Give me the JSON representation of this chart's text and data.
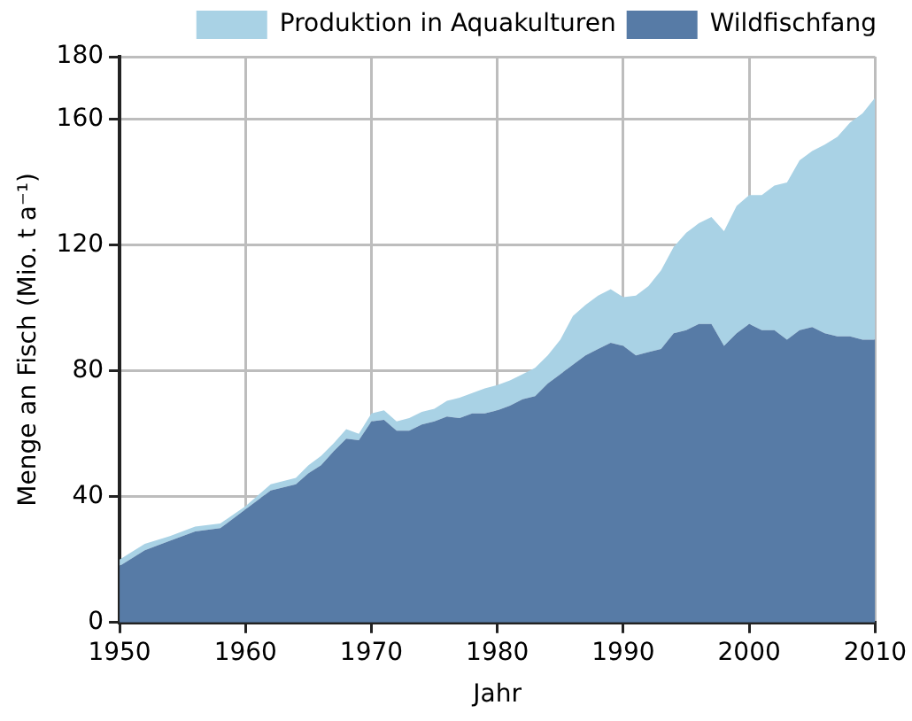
{
  "chart_data": {
    "type": "area",
    "stacked": true,
    "xlabel": "Jahr",
    "ylabel": "Menge an Fisch (Mio. t a⁻¹)",
    "x": [
      1950,
      1952,
      1954,
      1956,
      1958,
      1960,
      1962,
      1964,
      1965,
      1966,
      1967,
      1968,
      1969,
      1970,
      1971,
      1972,
      1973,
      1974,
      1975,
      1976,
      1977,
      1978,
      1979,
      1980,
      1981,
      1982,
      1983,
      1984,
      1985,
      1986,
      1987,
      1988,
      1989,
      1990,
      1991,
      1992,
      1993,
      1994,
      1995,
      1996,
      1997,
      1998,
      1999,
      2000,
      2001,
      2002,
      2003,
      2004,
      2005,
      2006,
      2007,
      2008,
      2009,
      2010
    ],
    "series": [
      {
        "name": "Wildfischfang",
        "color": "#577ba6",
        "values": [
          18,
          23,
          26,
          29,
          30,
          36,
          42,
          44,
          47.5,
          50,
          54.5,
          58.5,
          58,
          64,
          64.5,
          61,
          61,
          63,
          64,
          65.5,
          65,
          66.5,
          66.5,
          67.5,
          69,
          71,
          72,
          76,
          79,
          82,
          85,
          87,
          89,
          88,
          85,
          86,
          87,
          92,
          93,
          95,
          95,
          88,
          92,
          95,
          93,
          93,
          90,
          93,
          94,
          92,
          91,
          91,
          90,
          90
        ]
      },
      {
        "name": "Produktion in Aquakulturen",
        "color": "#a9d2e5",
        "values": [
          2,
          2,
          1.5,
          1.5,
          1.5,
          1,
          2,
          2,
          2.5,
          3,
          2.5,
          3,
          2,
          2.5,
          3,
          3,
          4,
          4,
          4,
          5,
          6.5,
          6.5,
          8,
          8,
          8,
          8,
          9,
          9,
          11,
          15.5,
          16,
          17,
          17,
          15.5,
          19,
          21,
          25,
          27.5,
          31,
          32,
          34,
          36.5,
          40.5,
          41,
          43,
          46,
          50,
          54,
          56,
          60,
          63.5,
          68,
          72,
          77
        ]
      }
    ],
    "xlim": [
      1950,
      2010
    ],
    "xticks": [
      1950,
      1960,
      1970,
      1980,
      1990,
      2000,
      2010
    ],
    "ylim": [
      0,
      180
    ],
    "yticks": [
      0,
      40,
      80,
      120,
      160,
      180
    ],
    "grid": true,
    "legend": "top right"
  }
}
